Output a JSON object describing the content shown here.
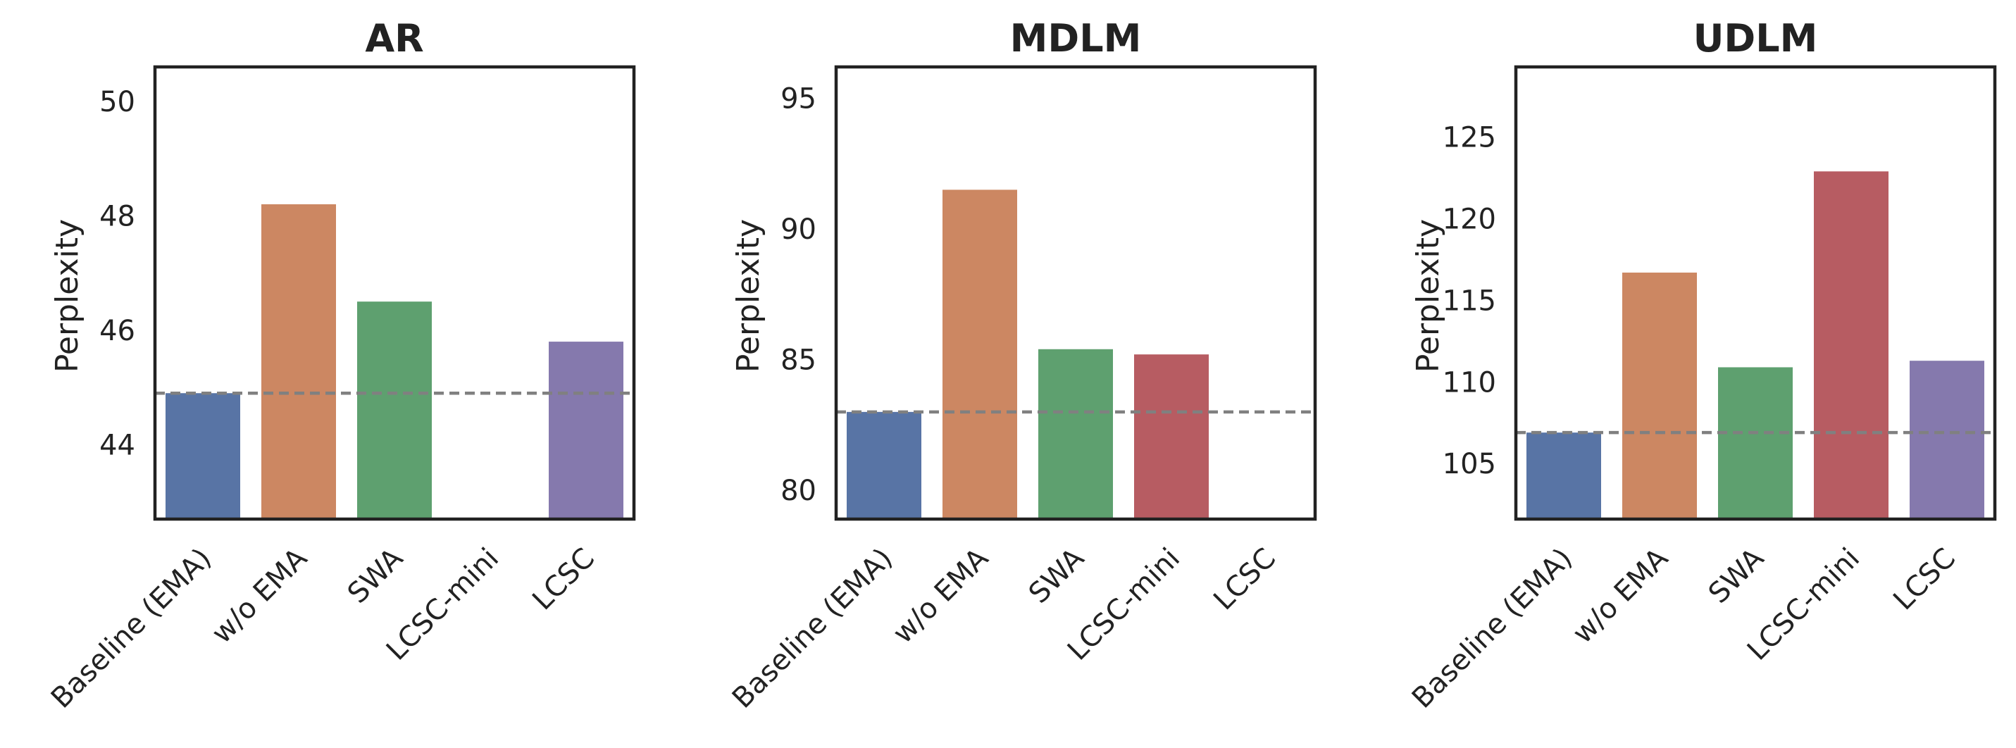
{
  "chart_data": [
    {
      "type": "bar",
      "title": "AR",
      "ylabel": "Perplexity",
      "categories": [
        "Baseline (EMA)",
        "w/o EMA",
        "SWA",
        "LCSC-mini",
        "LCSC"
      ],
      "values": [
        44.9,
        48.2,
        46.5,
        null,
        45.8
      ],
      "colors": [
        "#5874a5",
        "#cc8762",
        "#5ea06f",
        "#b75c62",
        "#8579ad"
      ],
      "yticks": [
        44,
        46,
        48,
        50
      ],
      "ylim": [
        42.7,
        50.6
      ],
      "baseline_value": 44.9,
      "grid": false
    },
    {
      "type": "bar",
      "title": "MDLM",
      "ylabel": "Perplexity",
      "categories": [
        "Baseline (EMA)",
        "w/o EMA",
        "SWA",
        "LCSC-mini",
        "LCSC"
      ],
      "values": [
        83.0,
        91.5,
        85.4,
        85.2,
        null
      ],
      "colors": [
        "#5874a5",
        "#cc8762",
        "#5ea06f",
        "#b75c62",
        "#8579ad"
      ],
      "yticks": [
        80,
        85,
        90,
        95
      ],
      "ylim": [
        78.9,
        96.2
      ],
      "baseline_value": 83.0,
      "grid": false
    },
    {
      "type": "bar",
      "title": "UDLM",
      "ylabel": "Perplexity",
      "categories": [
        "Baseline (EMA)",
        "w/o EMA",
        "SWA",
        "LCSC-mini",
        "LCSC"
      ],
      "values": [
        106.9,
        116.7,
        110.9,
        122.9,
        111.3
      ],
      "colors": [
        "#5874a5",
        "#cc8762",
        "#5ea06f",
        "#b75c62",
        "#8579ad"
      ],
      "yticks": [
        105,
        110,
        115,
        120,
        125
      ],
      "ylim": [
        101.6,
        129.3
      ],
      "baseline_value": 106.9,
      "grid": false
    }
  ]
}
